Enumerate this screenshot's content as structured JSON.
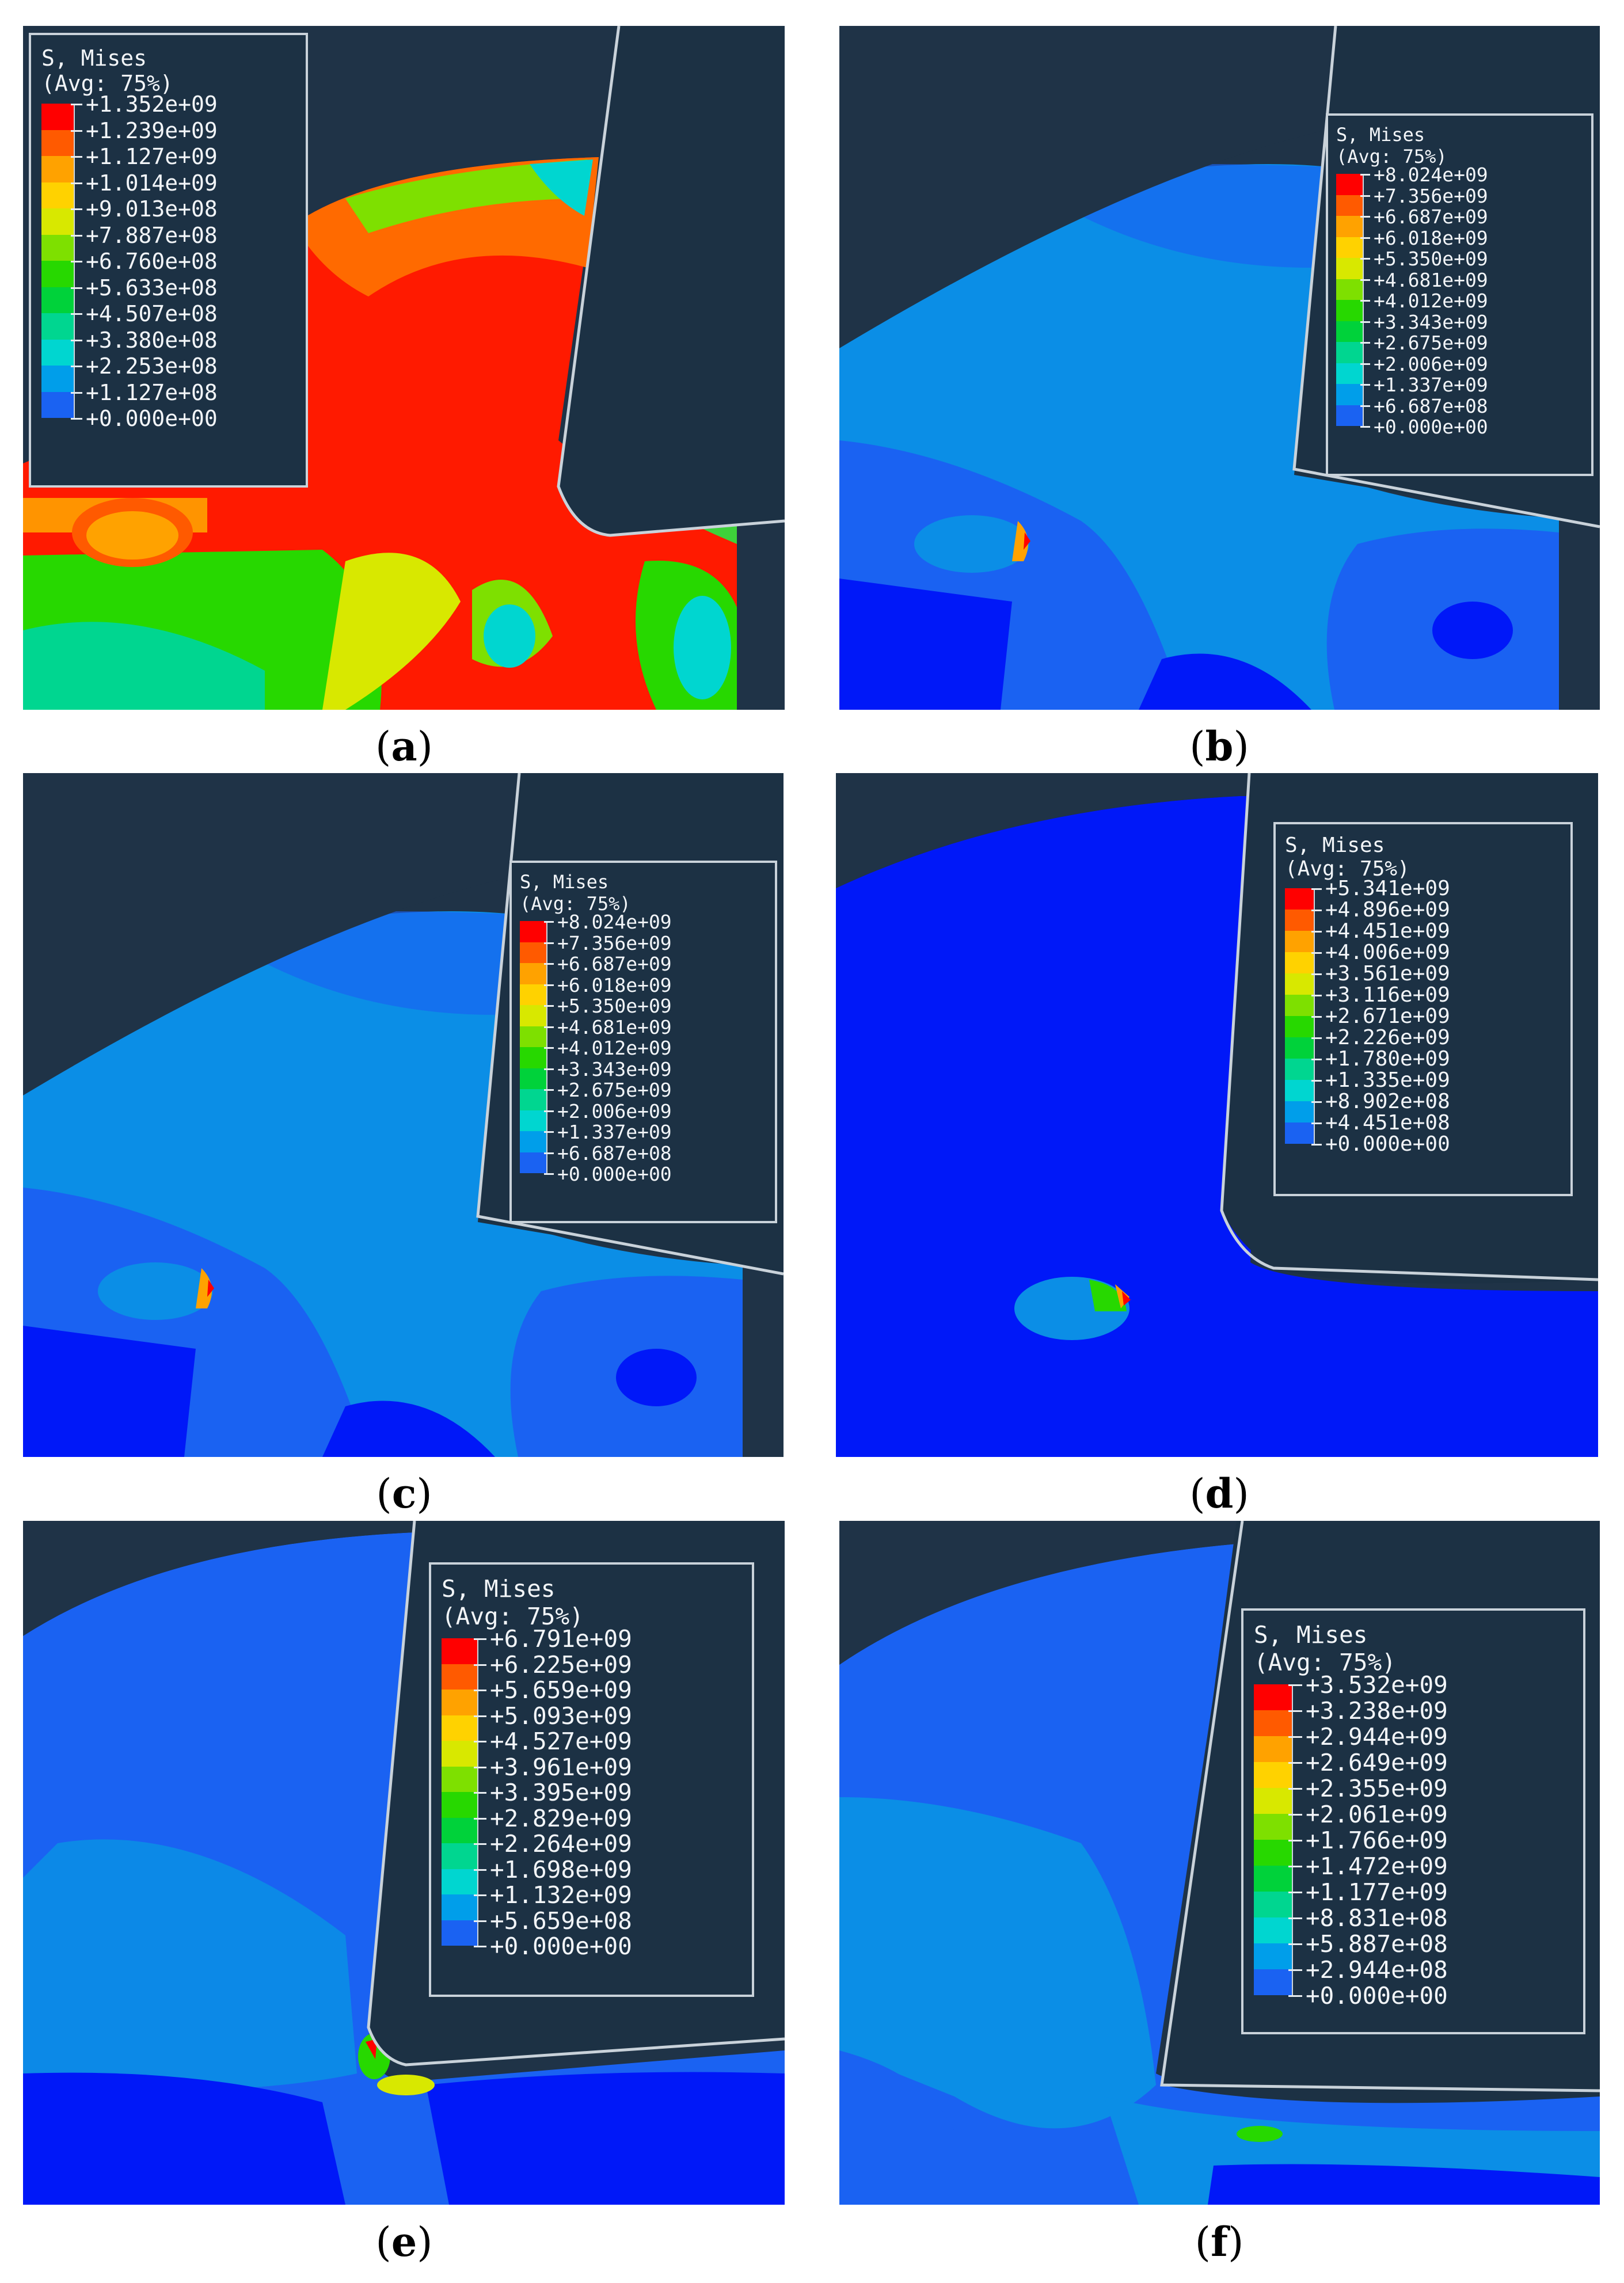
{
  "legend_palette": [
    "#ff0000",
    "#ff5a00",
    "#ffa200",
    "#ffd200",
    "#d8e800",
    "#7ee000",
    "#27d800",
    "#00d23a",
    "#00d690",
    "#00d6d0",
    "#009eea",
    "#1a62f2",
    "#0018f8"
  ],
  "panels": [
    {
      "id": "a",
      "caption_open": "(",
      "caption_letter": "a",
      "caption_close": ")",
      "legend_title_line1": "S, Mises",
      "legend_title_line2": "(Avg: 75%)",
      "legend_values": [
        "+1.352e+09",
        "+1.239e+09",
        "+1.127e+09",
        "+1.014e+09",
        "+9.013e+08",
        "+7.887e+08",
        "+6.760e+08",
        "+5.633e+08",
        "+4.507e+08",
        "+3.380e+08",
        "+2.253e+08",
        "+1.127e+08",
        "+0.000e+00"
      ]
    },
    {
      "id": "b",
      "caption_open": "(",
      "caption_letter": "b",
      "caption_close": ")",
      "legend_title_line1": "S, Mises",
      "legend_title_line2": "(Avg: 75%)",
      "legend_values": [
        "+8.024e+09",
        "+7.356e+09",
        "+6.687e+09",
        "+6.018e+09",
        "+5.350e+09",
        "+4.681e+09",
        "+4.012e+09",
        "+3.343e+09",
        "+2.675e+09",
        "+2.006e+09",
        "+1.337e+09",
        "+6.687e+08",
        "+0.000e+00"
      ]
    },
    {
      "id": "c",
      "caption_open": "(",
      "caption_letter": "c",
      "caption_close": ")",
      "legend_title_line1": "S, Mises",
      "legend_title_line2": "(Avg: 75%)",
      "legend_values": [
        "+8.024e+09",
        "+7.356e+09",
        "+6.687e+09",
        "+6.018e+09",
        "+5.350e+09",
        "+4.681e+09",
        "+4.012e+09",
        "+3.343e+09",
        "+2.675e+09",
        "+2.006e+09",
        "+1.337e+09",
        "+6.687e+08",
        "+0.000e+00"
      ]
    },
    {
      "id": "d",
      "caption_open": "(",
      "caption_letter": "d",
      "caption_close": ")",
      "legend_title_line1": "S, Mises",
      "legend_title_line2": "(Avg: 75%)",
      "legend_values": [
        "+5.341e+09",
        "+4.896e+09",
        "+4.451e+09",
        "+4.006e+09",
        "+3.561e+09",
        "+3.116e+09",
        "+2.671e+09",
        "+2.226e+09",
        "+1.780e+09",
        "+1.335e+09",
        "+8.902e+08",
        "+4.451e+08",
        "+0.000e+00"
      ]
    },
    {
      "id": "e",
      "caption_open": "(",
      "caption_letter": "e",
      "caption_close": ")",
      "legend_title_line1": "S, Mises",
      "legend_title_line2": "(Avg: 75%)",
      "legend_values": [
        "+6.791e+09",
        "+6.225e+09",
        "+5.659e+09",
        "+5.093e+09",
        "+4.527e+09",
        "+3.961e+09",
        "+3.395e+09",
        "+2.829e+09",
        "+2.264e+09",
        "+1.698e+09",
        "+1.132e+09",
        "+5.659e+08",
        "+0.000e+00"
      ]
    },
    {
      "id": "f",
      "caption_open": "(",
      "caption_letter": "f",
      "caption_close": ")",
      "legend_title_line1": "S, Mises",
      "legend_title_line2": "(Avg: 75%)",
      "legend_values": [
        "+3.532e+09",
        "+3.238e+09",
        "+2.944e+09",
        "+2.649e+09",
        "+2.355e+09",
        "+2.061e+09",
        "+1.766e+09",
        "+1.472e+09",
        "+1.177e+09",
        "+8.831e+08",
        "+5.887e+08",
        "+2.944e+08",
        "+0.000e+00"
      ]
    }
  ]
}
